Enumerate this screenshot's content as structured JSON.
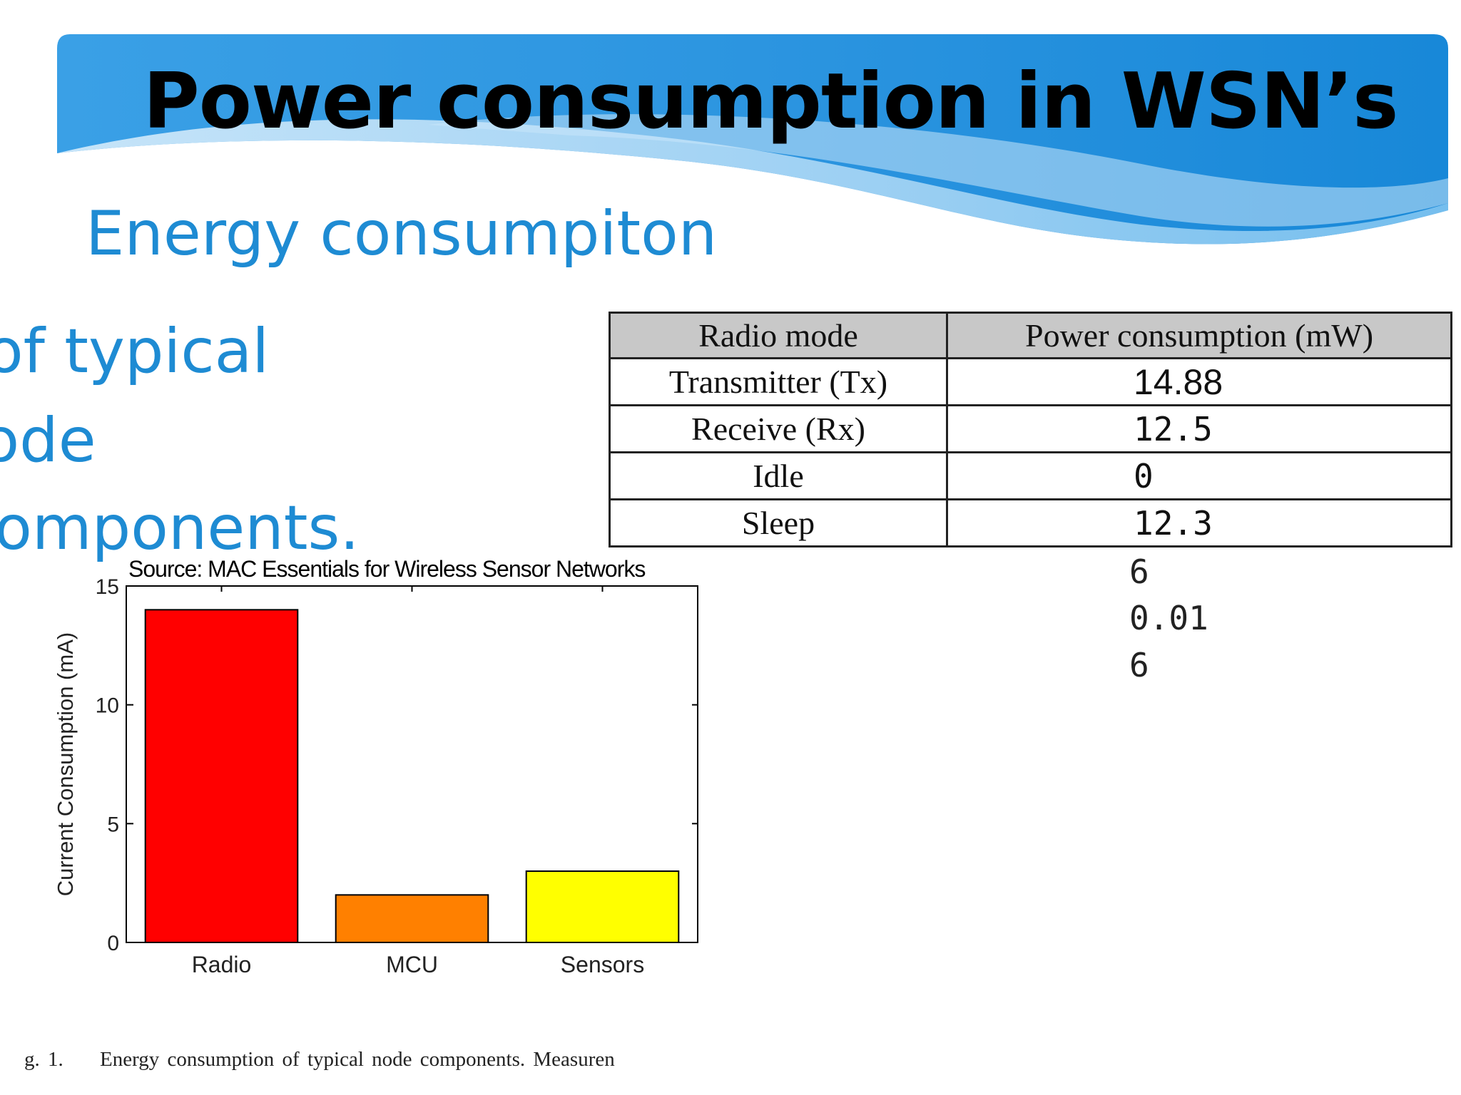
{
  "slide": {
    "title": "Power consumption in WSN’s",
    "subtitle_lines": [
      "Energy consumpiton",
      "of typical",
      "node",
      "components."
    ],
    "source": "Source: MAC Essentials for Wireless Sensor Networks",
    "caption_number": "g. 1.",
    "caption_text": "Energy consumption of typical node components. Measuren"
  },
  "table": {
    "headers": [
      "Radio mode",
      "Power consumption (mW)"
    ],
    "rows": [
      {
        "mode": "Transmitter (Tx)",
        "value": "14.88"
      },
      {
        "mode": "Receive (Rx)",
        "value": "12.5"
      },
      {
        "mode": "Idle",
        "value": "0"
      },
      {
        "mode": "Sleep",
        "value": "12.3"
      }
    ],
    "extra_values": [
      "6",
      "0.01",
      "6"
    ]
  },
  "colors": {
    "title_blue": "#1e8bd3",
    "banner_blue": "#1f8fdb",
    "radio_bar": "#ff0000",
    "mcu_bar": "#ff8000",
    "sensors_bar": "#ffff00"
  },
  "chart_data": {
    "type": "bar",
    "categories": [
      "Radio",
      "MCU",
      "Sensors"
    ],
    "values": [
      14,
      2,
      3
    ],
    "ylabel": "Current Consumption (mA)",
    "xlabel": "",
    "ylim": [
      0,
      15
    ],
    "yticks": [
      0,
      5,
      10,
      15
    ],
    "bar_colors": [
      "#ff0000",
      "#ff8000",
      "#ffff00"
    ],
    "grid": false
  }
}
